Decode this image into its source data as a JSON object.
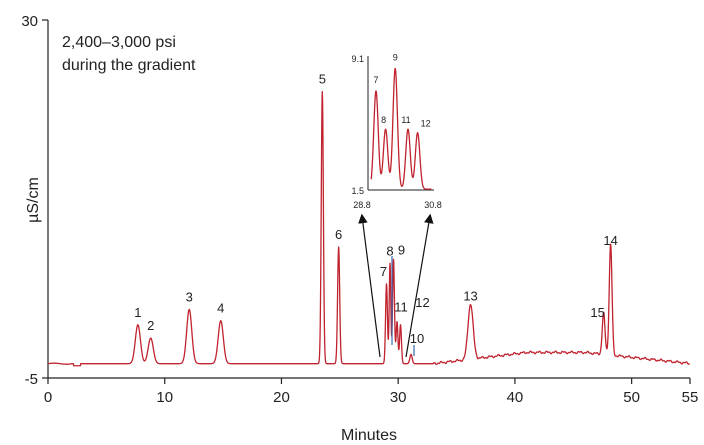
{
  "chart_data": {
    "type": "line",
    "xlabel": "Minutes",
    "ylabel": "µS/cm",
    "xlim": [
      0,
      55
    ],
    "ylim": [
      -5,
      30
    ],
    "x_ticks": [
      "0",
      "10",
      "20",
      "30",
      "40",
      "50",
      "55"
    ],
    "x_tick_values": [
      0,
      10,
      20,
      30,
      40,
      50,
      55
    ],
    "y_ticks": [
      "30",
      "-5"
    ],
    "y_tick_values": [
      30,
      -5
    ],
    "annotation_lines": [
      "2,400–3,000 psi",
      "during the gradient"
    ],
    "colors": {
      "trace": "#c0222e",
      "marker": "#3a67b0",
      "axis": "#222222"
    },
    "baseline": -3.6,
    "peaks": [
      {
        "label": "1",
        "x": 7.7,
        "y": 0.2
      },
      {
        "label": "2",
        "x": 8.8,
        "y": -1.1
      },
      {
        "label": "3",
        "x": 12.1,
        "y": 1.7
      },
      {
        "label": "4",
        "x": 14.8,
        "y": 0.6
      },
      {
        "label": "5",
        "x": 23.5,
        "y": 23.0
      },
      {
        "label": "6",
        "x": 24.9,
        "y": 7.8
      },
      {
        "label": "7",
        "x": 29.0,
        "y": 4.2
      },
      {
        "label": "8",
        "x": 29.3,
        "y": 6.2
      },
      {
        "label": "9",
        "x": 29.6,
        "y": 6.6
      },
      {
        "label": "10",
        "x": 31.1,
        "y": -2.7
      },
      {
        "label": "11",
        "x": 29.9,
        "y": 0.5
      },
      {
        "label": "12",
        "x": 30.2,
        "y": 0.2
      },
      {
        "label": "13",
        "x": 36.2,
        "y": 1.8
      },
      {
        "label": "15",
        "x": 47.6,
        "y": 0.4
      },
      {
        "label": "14",
        "x": 48.2,
        "y": 7.2
      }
    ],
    "inset": {
      "xlim": [
        28.8,
        30.8
      ],
      "ylim": [
        1.5,
        9.1
      ],
      "x_ticks": [
        "28.8",
        "30.8"
      ],
      "y_ticks": [
        "9.1",
        "1.5"
      ],
      "peaks": [
        {
          "label": "7",
          "x": 29.05,
          "y": 7.2
        },
        {
          "label": "8",
          "x": 29.35,
          "y": 5.0
        },
        {
          "label": "9",
          "x": 29.65,
          "y": 8.5
        },
        {
          "label": "11",
          "x": 30.05,
          "y": 5.0
        },
        {
          "label": "12",
          "x": 30.35,
          "y": 4.8
        }
      ]
    }
  }
}
